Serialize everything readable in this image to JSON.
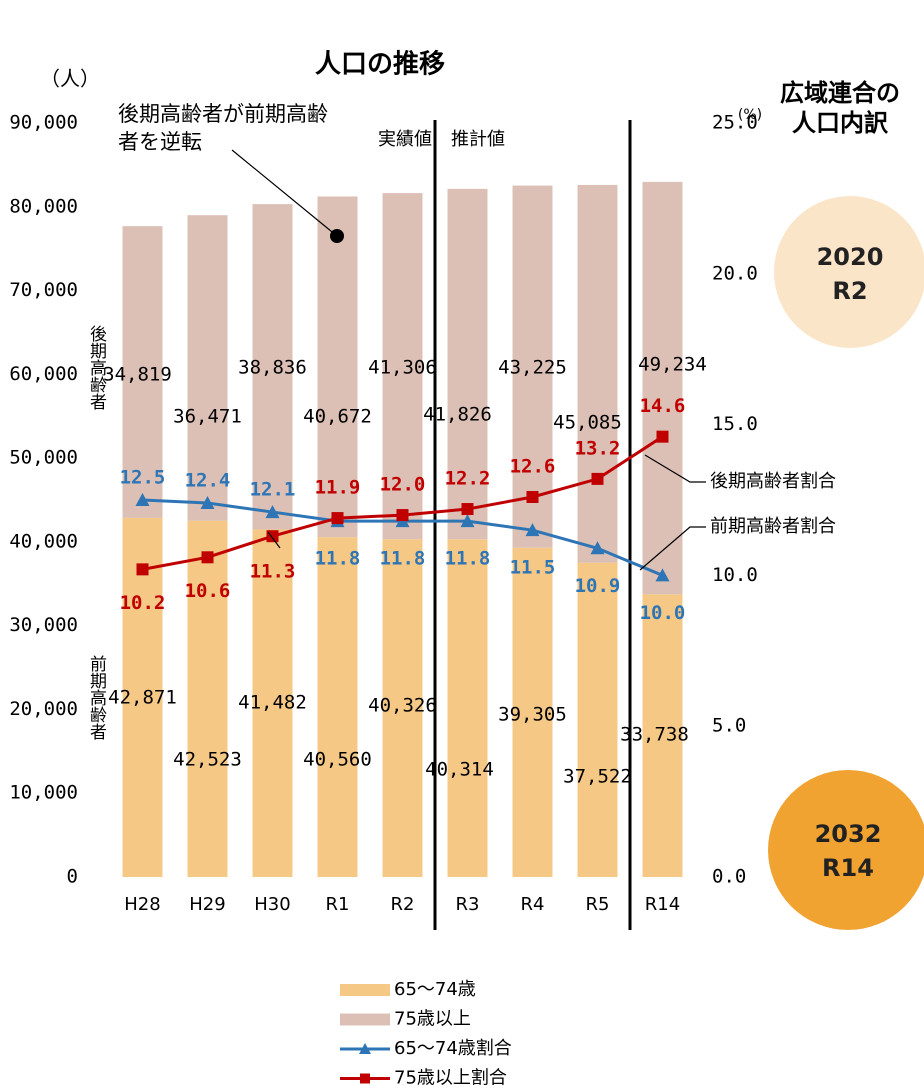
{
  "chart_data": {
    "type": "bar",
    "title": "人口の推移",
    "y_label": "（人）",
    "y2_label": "(%)",
    "annotation": "後期高齢者が前期高齢者を逆転",
    "phase_labels": [
      "実績値",
      "推計値"
    ],
    "stack_labels": [
      "後期高齢者",
      "前期高齢者"
    ],
    "line_annotations": [
      "後期高齢者割合",
      "前期高齢者割合"
    ],
    "side_title": "広域連合の人口内訳",
    "badges": [
      {
        "year": "2020",
        "era": "R2"
      },
      {
        "year": "2032",
        "era": "R14"
      }
    ],
    "categories": [
      "H28",
      "H29",
      "H30",
      "R1",
      "R2",
      "R3",
      "R4",
      "R5",
      "R14"
    ],
    "series": [
      {
        "name": "65～74歳",
        "type": "bar",
        "color": "#f5c886",
        "values": [
          42871,
          42523,
          41482,
          40560,
          40326,
          40314,
          39305,
          37522,
          33738
        ],
        "value_labels": [
          "42,871",
          "42,523",
          "41,482",
          "40,560",
          "40,326",
          "40,314",
          "39,305",
          "37,522",
          "33,738"
        ]
      },
      {
        "name": "75歳以上",
        "type": "bar",
        "color": "#dcc0b5",
        "values": [
          34819,
          36471,
          38836,
          40672,
          41306,
          41826,
          43225,
          45085,
          49234
        ],
        "value_labels": [
          "34,819",
          "36,471",
          "38,836",
          "40,672",
          "41,306",
          "41,826",
          "43,225",
          "45,085",
          "49,234"
        ]
      },
      {
        "name": "65～74歳割合",
        "type": "line",
        "axis": "y2",
        "color": "#2e75b6",
        "marker": "triangle",
        "values": [
          12.5,
          12.4,
          12.1,
          11.8,
          11.8,
          11.8,
          11.5,
          10.9,
          10.0
        ],
        "value_labels": [
          "12.5",
          "12.4",
          "12.1",
          "11.8",
          "11.8",
          "11.8",
          "11.5",
          "10.9",
          "10.0"
        ]
      },
      {
        "name": "75歳以上割合",
        "type": "line",
        "axis": "y2",
        "color": "#c00000",
        "marker": "square",
        "values": [
          10.2,
          10.6,
          11.3,
          11.9,
          12.0,
          12.2,
          12.6,
          13.2,
          14.6
        ],
        "value_labels": [
          "10.2",
          "10.6",
          "11.3",
          "11.9",
          "12.0",
          "12.2",
          "12.6",
          "13.2",
          "14.6"
        ]
      }
    ],
    "ylim": [
      0,
      90000
    ],
    "yticks": [
      0,
      {
        "value": 10000,
        "label": "10,000"
      },
      {
        "value": 20000,
        "label": "20,000"
      },
      {
        "value": 30000,
        "label": "30,000"
      },
      {
        "value": 40000,
        "label": "40,000"
      },
      {
        "value": 50000,
        "label": "50,000"
      },
      {
        "value": 60000,
        "label": "60,000"
      },
      {
        "value": 70000,
        "label": "70,000"
      },
      {
        "value": 80000,
        "label": "80,000"
      },
      {
        "value": 90000,
        "label": "90,000"
      }
    ],
    "y2lim": [
      0,
      25
    ],
    "y2ticks": [
      {
        "value": 0,
        "label": "0.0"
      },
      {
        "value": 5,
        "label": "5.0"
      },
      {
        "value": 10,
        "label": "10.0"
      },
      {
        "value": 15,
        "label": "15.0"
      },
      {
        "value": 20,
        "label": "20.0"
      },
      {
        "value": 25,
        "label": "25.0"
      }
    ],
    "grid": false
  }
}
